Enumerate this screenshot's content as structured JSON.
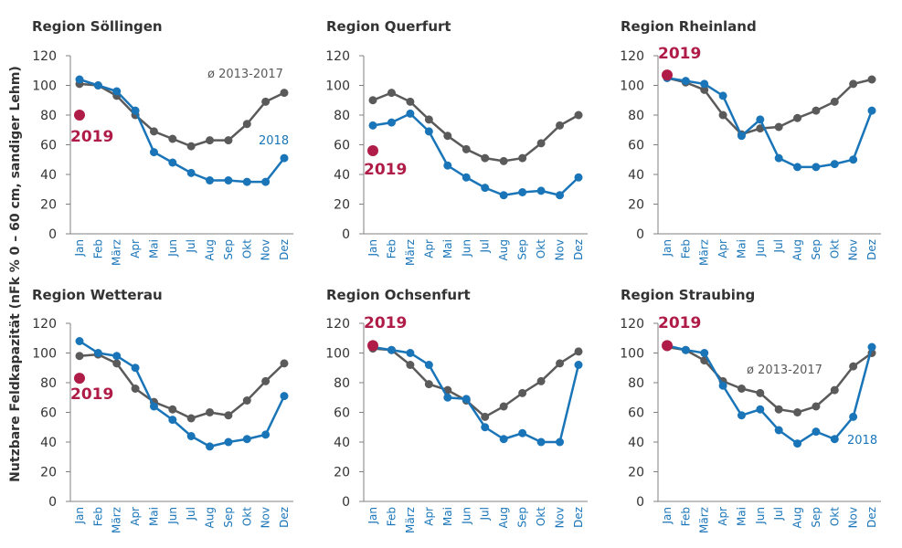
{
  "ylabel": "Nutzbare Feldkapazität (nFk % 0 – 60 cm, sandiger Lehm)",
  "colors": {
    "avg": "#5a5a5a",
    "y2018": "#1a75b8",
    "y2019": "#b01c48",
    "axis": "#808080",
    "month_label": "#1a75b8",
    "title": "#333333"
  },
  "chart_data": [
    {
      "type": "line",
      "title": "Region Söllingen",
      "categories": [
        "Jan",
        "Feb",
        "März",
        "Apr",
        "Mai",
        "Jun",
        "Jul",
        "Aug",
        "Sep",
        "Okt",
        "Nov",
        "Dez"
      ],
      "ylim": [
        0,
        120
      ],
      "yticks": [
        0,
        20,
        40,
        60,
        80,
        100,
        120
      ],
      "series": [
        {
          "name": "ø 2013-2017",
          "values": [
            101,
            100,
            93,
            80,
            69,
            64,
            59,
            63,
            63,
            74,
            89,
            95
          ]
        },
        {
          "name": "2018",
          "values": [
            104,
            100,
            96,
            83,
            55,
            48,
            41,
            36,
            36,
            35,
            35,
            51
          ]
        },
        {
          "name": "2019",
          "values": [
            80,
            null,
            null,
            null,
            null,
            null,
            null,
            null,
            null,
            null,
            null,
            null
          ]
        }
      ]
    },
    {
      "type": "line",
      "title": "Region Querfurt",
      "categories": [
        "Jan",
        "Feb",
        "März",
        "Apr",
        "Mai",
        "Jun",
        "Jul",
        "Aug",
        "Sep",
        "Okt",
        "Nov",
        "Dez"
      ],
      "ylim": [
        0,
        120
      ],
      "yticks": [
        0,
        20,
        40,
        60,
        80,
        100,
        120
      ],
      "series": [
        {
          "name": "",
          "values": [
            90,
            95,
            89,
            77,
            66,
            57,
            51,
            49,
            51,
            61,
            73,
            80
          ]
        },
        {
          "name": "",
          "values": [
            73,
            75,
            81,
            69,
            46,
            38,
            31,
            26,
            28,
            29,
            26,
            38
          ]
        },
        {
          "name": "2019",
          "values": [
            56,
            null,
            null,
            null,
            null,
            null,
            null,
            null,
            null,
            null,
            null,
            null
          ]
        }
      ]
    },
    {
      "type": "line",
      "title": "Region Rheinland",
      "categories": [
        "Jan",
        "Feb",
        "März",
        "Apr",
        "Mai",
        "Jun",
        "Jul",
        "Aug",
        "Sep",
        "Okt",
        "Nov",
        "Dez"
      ],
      "ylim": [
        0,
        120
      ],
      "yticks": [
        0,
        20,
        40,
        60,
        80,
        100,
        120
      ],
      "series": [
        {
          "name": "",
          "values": [
            105,
            102,
            97,
            80,
            67,
            71,
            72,
            78,
            83,
            89,
            101,
            104
          ]
        },
        {
          "name": "",
          "values": [
            105,
            103,
            101,
            93,
            66,
            77,
            51,
            45,
            45,
            47,
            50,
            83
          ]
        },
        {
          "name": "2019",
          "values": [
            107,
            null,
            null,
            null,
            null,
            null,
            null,
            null,
            null,
            null,
            null,
            null
          ]
        }
      ]
    },
    {
      "type": "line",
      "title": "Region Wetterau",
      "categories": [
        "Jan",
        "Feb",
        "März",
        "Apr",
        "Mai",
        "Jun",
        "Jul",
        "Aug",
        "Sep",
        "Okt",
        "Nov",
        "Dez"
      ],
      "ylim": [
        0,
        120
      ],
      "yticks": [
        0,
        20,
        40,
        60,
        80,
        100,
        120
      ],
      "series": [
        {
          "name": "",
          "values": [
            98,
            99,
            93,
            76,
            67,
            62,
            56,
            60,
            58,
            68,
            81,
            93
          ]
        },
        {
          "name": "",
          "values": [
            108,
            100,
            98,
            90,
            64,
            55,
            44,
            37,
            40,
            42,
            45,
            71
          ]
        },
        {
          "name": "2019",
          "values": [
            83,
            null,
            null,
            null,
            null,
            null,
            null,
            null,
            null,
            null,
            null,
            null
          ]
        }
      ]
    },
    {
      "type": "line",
      "title": "Region Ochsenfurt",
      "categories": [
        "Jan",
        "Feb",
        "März",
        "Apr",
        "Mai",
        "Jun",
        "Jul",
        "Aug",
        "Sep",
        "Okt",
        "Nov",
        "Dez"
      ],
      "ylim": [
        0,
        120
      ],
      "yticks": [
        0,
        20,
        40,
        60,
        80,
        100,
        120
      ],
      "series": [
        {
          "name": "",
          "values": [
            103,
            102,
            92,
            79,
            75,
            68,
            57,
            64,
            73,
            81,
            93,
            101
          ]
        },
        {
          "name": "",
          "values": [
            104,
            102,
            100,
            92,
            70,
            69,
            50,
            42,
            46,
            40,
            40,
            92
          ]
        },
        {
          "name": "2019",
          "values": [
            105,
            null,
            null,
            null,
            null,
            null,
            null,
            null,
            null,
            null,
            null,
            null
          ]
        }
      ]
    },
    {
      "type": "line",
      "title": "Region Straubing",
      "categories": [
        "Jan",
        "Feb",
        "März",
        "Apr",
        "Mai",
        "Jun",
        "Jul",
        "Aug",
        "Sep",
        "Okt",
        "Nov",
        "Dez"
      ],
      "ylim": [
        0,
        120
      ],
      "yticks": [
        0,
        20,
        40,
        60,
        80,
        100,
        120
      ],
      "series": [
        {
          "name": "ø 2013-2017",
          "values": [
            104,
            102,
            95,
            81,
            76,
            73,
            62,
            60,
            64,
            75,
            91,
            100
          ]
        },
        {
          "name": "2018",
          "values": [
            105,
            102,
            100,
            78,
            58,
            62,
            48,
            39,
            47,
            42,
            57,
            104
          ]
        },
        {
          "name": "2019",
          "values": [
            105,
            null,
            null,
            null,
            null,
            null,
            null,
            null,
            null,
            null,
            null,
            null
          ]
        }
      ]
    }
  ]
}
